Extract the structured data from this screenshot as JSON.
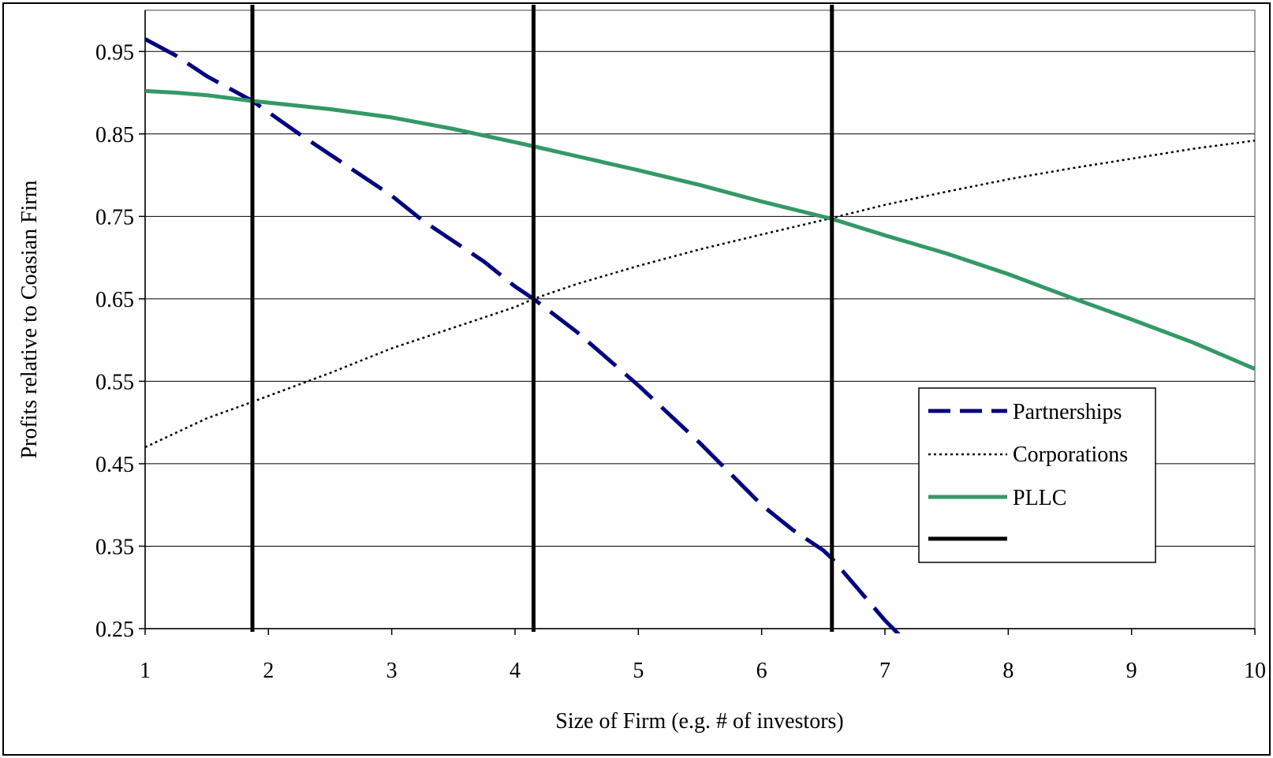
{
  "chart_data": {
    "type": "line",
    "title": "",
    "xlabel": "Size of Firm (e.g. # of investors)",
    "ylabel": "Profits relative to Coasian Firm",
    "xlim": [
      1,
      10
    ],
    "ylim": [
      0.25,
      1.0
    ],
    "x_ticks": [
      "1",
      "2",
      "3",
      "4",
      "5",
      "6",
      "7",
      "8",
      "9",
      "10"
    ],
    "y_ticks": [
      "0.25",
      "0.35",
      "0.45",
      "0.55",
      "0.65",
      "0.75",
      "0.85",
      "0.95"
    ],
    "grid": "horizontal",
    "legend_position": "right",
    "series": [
      {
        "name": "Partnerships",
        "style": "dashed",
        "color": "#000080",
        "x": [
          1.0,
          1.25,
          1.5,
          1.87,
          2.25,
          2.5,
          2.75,
          3.0,
          3.25,
          3.5,
          3.75,
          4.0,
          4.15,
          4.5,
          5.0,
          5.5,
          6.0,
          6.25,
          6.5,
          6.57,
          7.0,
          7.2
        ],
        "y": [
          0.965,
          0.945,
          0.92,
          0.89,
          0.85,
          0.825,
          0.8,
          0.775,
          0.745,
          0.72,
          0.695,
          0.665,
          0.65,
          0.61,
          0.545,
          0.475,
          0.4,
          0.37,
          0.345,
          0.335,
          0.26,
          0.23
        ]
      },
      {
        "name": "Corporations",
        "style": "dotted",
        "color": "#000000",
        "x": [
          1.0,
          1.5,
          1.87,
          2.5,
          3.0,
          3.5,
          4.0,
          4.15,
          4.5,
          5.0,
          5.5,
          6.0,
          6.57,
          7.0,
          7.5,
          8.0,
          8.5,
          9.0,
          9.5,
          10.0
        ],
        "y": [
          0.47,
          0.505,
          0.525,
          0.56,
          0.59,
          0.615,
          0.64,
          0.65,
          0.668,
          0.69,
          0.71,
          0.728,
          0.748,
          0.764,
          0.78,
          0.795,
          0.808,
          0.82,
          0.832,
          0.842
        ]
      },
      {
        "name": "PLLC",
        "style": "solid",
        "color": "#339966",
        "x": [
          1.0,
          1.25,
          1.5,
          1.87,
          2.0,
          2.5,
          3.0,
          3.5,
          4.0,
          4.15,
          4.5,
          5.0,
          5.5,
          6.0,
          6.57,
          7.0,
          7.5,
          8.0,
          8.5,
          9.0,
          9.5,
          10.0
        ],
        "y": [
          0.902,
          0.9,
          0.897,
          0.89,
          0.888,
          0.88,
          0.87,
          0.856,
          0.84,
          0.835,
          0.823,
          0.806,
          0.788,
          0.768,
          0.747,
          0.727,
          0.705,
          0.68,
          0.652,
          0.625,
          0.597,
          0.565
        ]
      },
      {
        "name": "",
        "style": "vertical-line",
        "color": "#000000",
        "x": [
          1.87,
          4.15,
          6.57
        ]
      }
    ]
  }
}
